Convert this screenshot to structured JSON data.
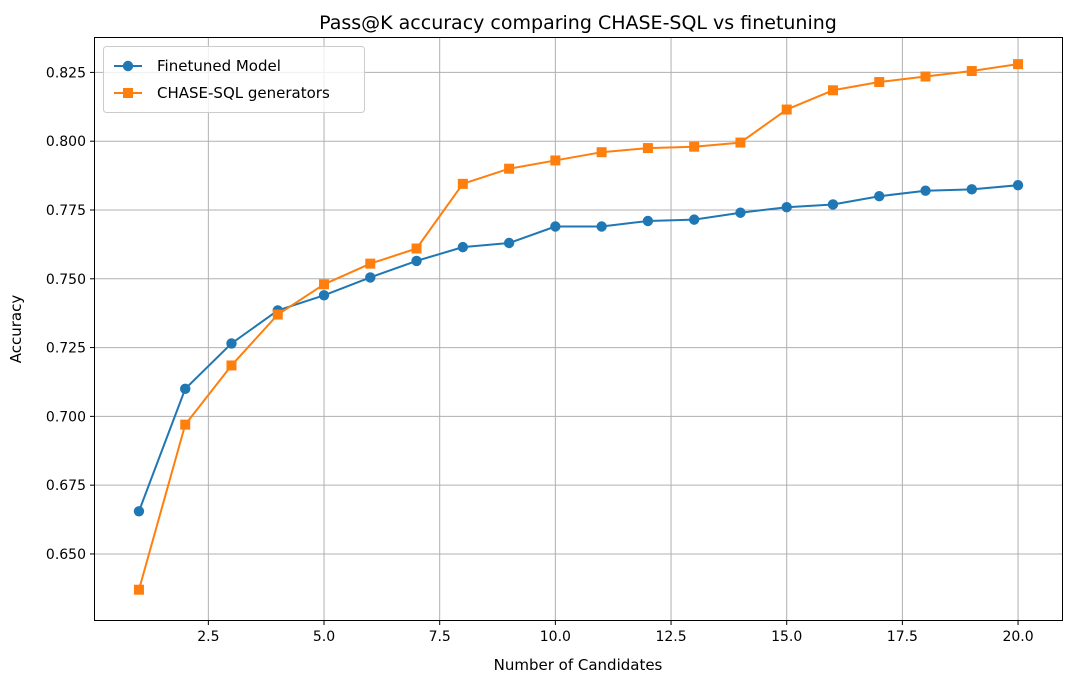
{
  "chart_data": {
    "type": "line",
    "title": "Pass@K accuracy comparing CHASE-SQL vs finetuning",
    "xlabel": "Number of Candidates",
    "ylabel": "Accuracy",
    "xlim": [
      0.05,
      20.95
    ],
    "ylim": [
      0.626,
      0.8375
    ],
    "xticks": [
      2.5,
      5.0,
      7.5,
      10.0,
      12.5,
      15.0,
      17.5,
      20.0
    ],
    "xtick_labels": [
      "2.5",
      "5.0",
      "7.5",
      "10.0",
      "12.5",
      "15.0",
      "17.5",
      "20.0"
    ],
    "yticks": [
      0.65,
      0.675,
      0.7,
      0.725,
      0.75,
      0.775,
      0.8,
      0.825
    ],
    "ytick_labels": [
      "0.650",
      "0.675",
      "0.700",
      "0.725",
      "0.750",
      "0.775",
      "0.800",
      "0.825"
    ],
    "grid": true,
    "legend_position": "top-left",
    "x": [
      1,
      2,
      3,
      4,
      5,
      6,
      7,
      8,
      9,
      10,
      11,
      12,
      13,
      14,
      15,
      16,
      17,
      18,
      19,
      20
    ],
    "series": [
      {
        "name": "Finetuned Model",
        "color": "#1f77b4",
        "marker": "circle",
        "values": [
          0.6655,
          0.71,
          0.7265,
          0.7385,
          0.744,
          0.7505,
          0.7565,
          0.7615,
          0.763,
          0.769,
          0.769,
          0.771,
          0.7715,
          0.774,
          0.776,
          0.777,
          0.78,
          0.782,
          0.7825,
          0.784
        ]
      },
      {
        "name": "CHASE-SQL generators",
        "color": "#ff7f0e",
        "marker": "square",
        "values": [
          0.637,
          0.697,
          0.7185,
          0.737,
          0.748,
          0.7555,
          0.761,
          0.7845,
          0.79,
          0.793,
          0.796,
          0.7975,
          0.798,
          0.7995,
          0.8115,
          0.8185,
          0.8215,
          0.8235,
          0.8255,
          0.828
        ]
      }
    ]
  }
}
